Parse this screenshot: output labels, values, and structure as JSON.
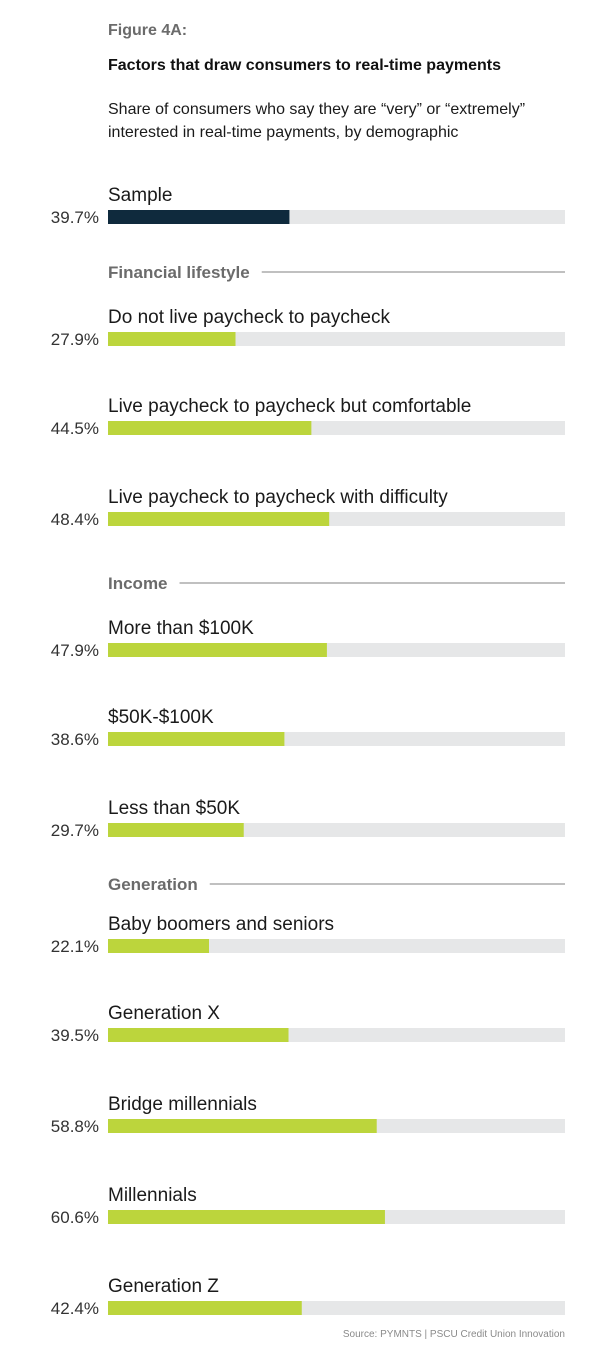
{
  "figure_label": "Figure 4A:",
  "title": "Factors that draw consumers to real-time payments",
  "subtitle": "Share of consumers who say they are “very” or “extremely” interested in real-time payments, by demographic",
  "source": "Source: PYMNTS | PSCU Credit Union Innovation",
  "colors": {
    "sample_bar": "#0f2a3d",
    "bar": "#bcd53c",
    "track": "#e6e7e8",
    "heading": "#6b6b6b",
    "rule": "#9a9a9a"
  },
  "chart_data": {
    "type": "bar",
    "orientation": "horizontal",
    "unit": "%",
    "xlim": [
      0,
      100
    ],
    "groups": [
      {
        "heading": "",
        "rows": [
          {
            "label": "Sample",
            "value": 39.7,
            "value_label": "39.7%",
            "highlight": true
          }
        ]
      },
      {
        "heading": "Financial lifestyle",
        "rows": [
          {
            "label": "Do not live paycheck to paycheck",
            "value": 27.9,
            "value_label": "27.9%"
          },
          {
            "label": "Live paycheck to paycheck but comfortable",
            "value": 44.5,
            "value_label": "44.5%"
          },
          {
            "label": "Live paycheck to paycheck with difficulty",
            "value": 48.4,
            "value_label": "48.4%"
          }
        ]
      },
      {
        "heading": "Income",
        "rows": [
          {
            "label": "More than $100K",
            "value": 47.9,
            "value_label": "47.9%"
          },
          {
            "label": "$50K-$100K",
            "value": 38.6,
            "value_label": "38.6%"
          },
          {
            "label": "Less than $50K",
            "value": 29.7,
            "value_label": "29.7%"
          }
        ]
      },
      {
        "heading": "Generation",
        "rows": [
          {
            "label": "Baby boomers and seniors",
            "value": 22.1,
            "value_label": "22.1%"
          },
          {
            "label": "Generation X",
            "value": 39.5,
            "value_label": "39.5%"
          },
          {
            "label": "Bridge millennials",
            "value": 58.8,
            "value_label": "58.8%"
          },
          {
            "label": "Millennials",
            "value": 60.6,
            "value_label": "60.6%"
          },
          {
            "label": "Generation Z",
            "value": 42.4,
            "value_label": "42.4%"
          }
        ]
      }
    ]
  }
}
